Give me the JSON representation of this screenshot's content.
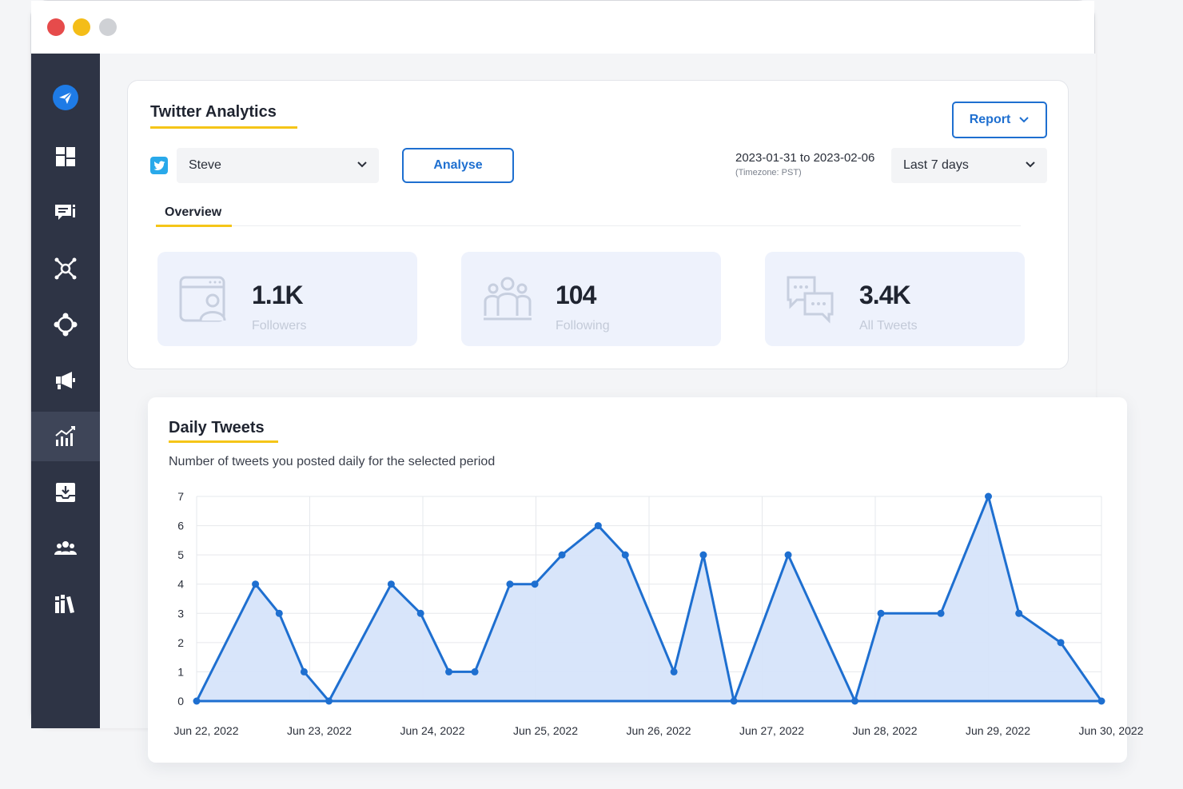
{
  "window": {
    "controls": [
      "close",
      "minimize",
      "maximize"
    ]
  },
  "sidebar": {
    "items": [
      {
        "icon": "send-icon",
        "active": false
      },
      {
        "icon": "dashboard-icon",
        "active": false
      },
      {
        "icon": "posts-icon",
        "active": false
      },
      {
        "icon": "network-icon",
        "active": false
      },
      {
        "icon": "integration-icon",
        "active": false
      },
      {
        "icon": "megaphone-icon",
        "active": false
      },
      {
        "icon": "analytics-icon",
        "active": true
      },
      {
        "icon": "inbox-download-icon",
        "active": false
      },
      {
        "icon": "team-icon",
        "active": false
      },
      {
        "icon": "library-icon",
        "active": false
      }
    ]
  },
  "analytics": {
    "title": "Twitter Analytics",
    "report_label": "Report",
    "account": "Steve",
    "analyse_label": "Analyse",
    "date_range": "2023-01-31 to 2023-02-06",
    "timezone": "(Timezone: PST)",
    "range_option": "Last 7 days",
    "tab": "Overview",
    "stats": [
      {
        "value": "1.1K",
        "label": "Followers",
        "icon": "followers-icon"
      },
      {
        "value": "104",
        "label": "Following",
        "icon": "group-icon"
      },
      {
        "value": "3.4K",
        "label": "All Tweets",
        "icon": "chat-bubbles-icon"
      }
    ]
  },
  "daily_tweets": {
    "title": "Daily Tweets",
    "subtitle": "Number of tweets you posted daily for the selected period"
  },
  "colors": {
    "accent": "#1e6fd0",
    "underline": "#f5c518",
    "sidebar": "#2e3445",
    "area_fill": "#d6e4fa"
  },
  "chart_data": {
    "type": "area",
    "title": "Daily Tweets",
    "subtitle": "Number of tweets you posted daily for the selected period",
    "xlabel": "",
    "ylabel": "",
    "ylim": [
      0,
      7
    ],
    "yticks": [
      "0",
      "1",
      "2",
      "3",
      "4",
      "5",
      "6",
      "7"
    ],
    "x_tick_labels": [
      "Jun 22, 2022",
      "Jun 23, 2022",
      "Jun 24, 2022",
      "Jun 25, 2022",
      "Jun 26, 2022",
      "Jun 27, 2022",
      "Jun 28, 2022",
      "Jun 29, 2022",
      "Jun 30, 2022"
    ],
    "grid": true,
    "series": [
      {
        "x": [
          0,
          0.52,
          0.73,
          0.95,
          1.17,
          1.72,
          1.98,
          2.23,
          2.46,
          2.77,
          2.99,
          3.23,
          3.55,
          3.79,
          4.22,
          4.48,
          4.75,
          5.23,
          5.82,
          6.05,
          6.58,
          7.0,
          7.27,
          7.64,
          8.0
        ],
        "values": [
          0,
          4,
          3,
          1,
          0,
          4,
          3,
          1,
          1,
          4,
          4,
          5,
          6,
          5,
          1,
          5,
          0,
          5,
          0,
          3,
          3,
          7,
          3,
          2,
          0
        ]
      }
    ]
  }
}
